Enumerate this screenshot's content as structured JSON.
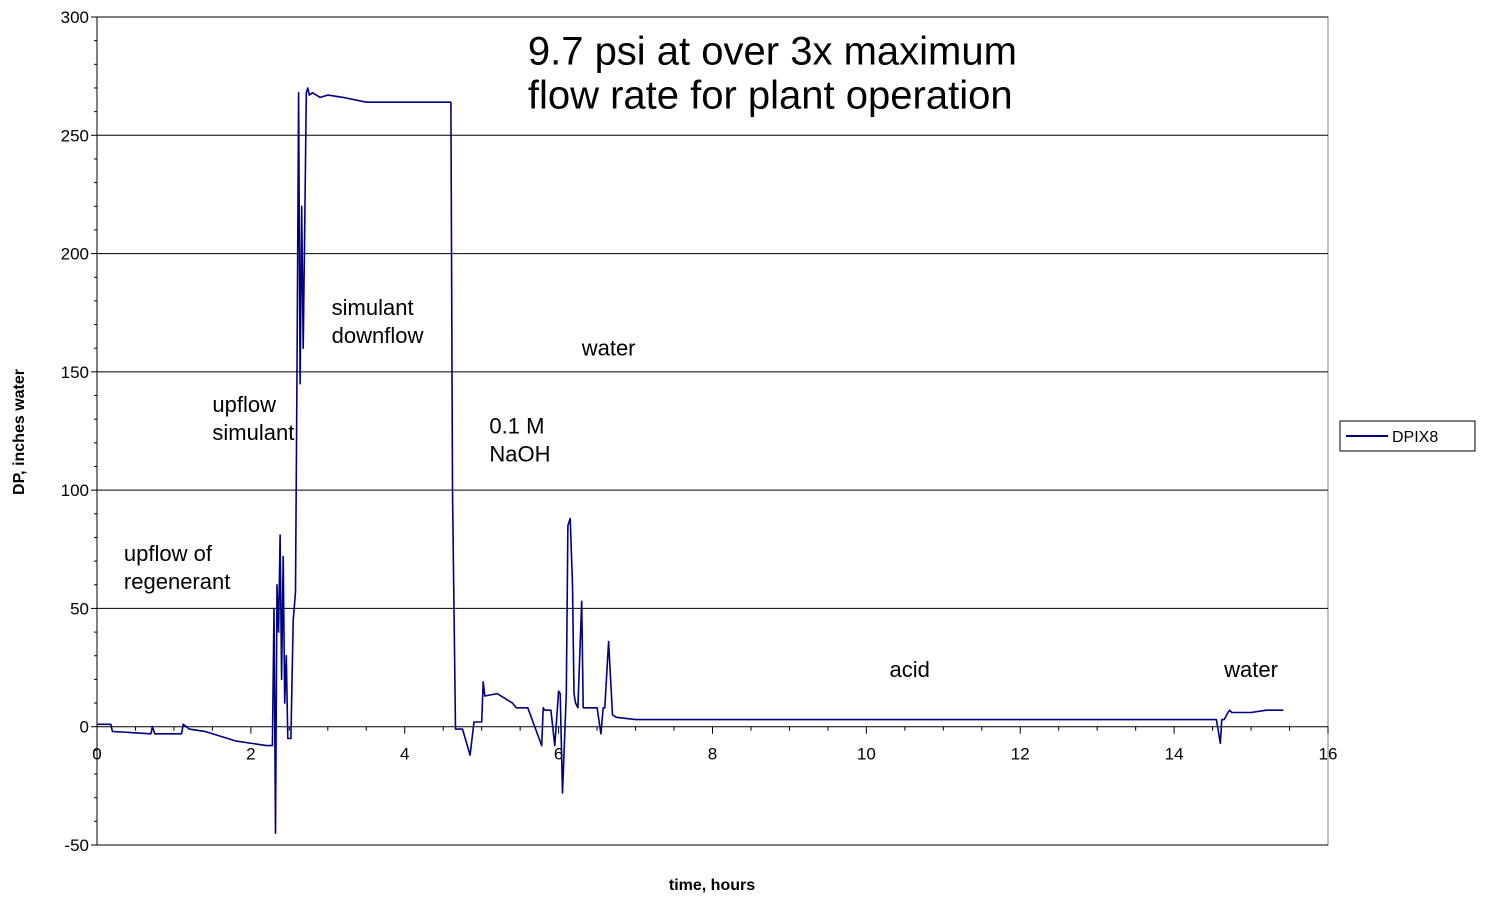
{
  "chart_data": {
    "type": "line",
    "title": "",
    "xlabel": "time, hours",
    "ylabel": "DP, inches water",
    "xlim": [
      0,
      16
    ],
    "ylim": [
      -50,
      300
    ],
    "xticks": [
      "0",
      "2",
      "4",
      "6",
      "8",
      "10",
      "12",
      "14",
      "16"
    ],
    "yticks": [
      "300",
      "250",
      "200",
      "150",
      "100",
      "50",
      "0",
      "-50"
    ],
    "grid": "horizontal",
    "legend_position": "right",
    "colors": {
      "series": "#000080",
      "grid": "#000000",
      "background": "#ffffff"
    },
    "series": [
      {
        "name": "DPIX8",
        "x": [
          0,
          0.18,
          0.2,
          0.7,
          0.72,
          0.75,
          1.1,
          1.12,
          1.2,
          1.4,
          1.8,
          2.2,
          2.28,
          2.3,
          2.32,
          2.34,
          2.36,
          2.38,
          2.4,
          2.42,
          2.44,
          2.46,
          2.48,
          2.52,
          2.55,
          2.58,
          2.6,
          2.62,
          2.64,
          2.66,
          2.68,
          2.7,
          2.72,
          2.74,
          2.76,
          2.8,
          2.9,
          3.0,
          3.2,
          3.5,
          4.0,
          4.5,
          4.6,
          4.62,
          4.66,
          4.7,
          4.75,
          4.85,
          4.9,
          5.0,
          5.02,
          5.04,
          5.2,
          5.4,
          5.45,
          5.6,
          5.78,
          5.8,
          5.82,
          5.9,
          5.95,
          6.0,
          6.02,
          6.05,
          6.1,
          6.12,
          6.15,
          6.18,
          6.2,
          6.22,
          6.25,
          6.3,
          6.32,
          6.35,
          6.5,
          6.55,
          6.58,
          6.6,
          6.65,
          6.7,
          6.75,
          7.0,
          7.5,
          8.0,
          9.0,
          10.0,
          11.0,
          12.0,
          13.0,
          14.0,
          14.5,
          14.55,
          14.6,
          14.62,
          14.65,
          14.7,
          14.72,
          14.75,
          14.8,
          15.0,
          15.2,
          15.3,
          15.4,
          15.42
        ],
        "y": [
          1,
          1,
          -2,
          -3,
          0,
          -3,
          -3,
          1,
          -1,
          -2,
          -6,
          -8,
          -8,
          50,
          -45,
          60,
          40,
          81,
          20,
          72,
          10,
          30,
          -5,
          -5,
          45,
          57,
          150,
          268,
          145,
          220,
          160,
          210,
          268,
          270,
          267,
          268,
          266,
          267,
          266,
          264,
          264,
          264,
          264,
          100,
          -1,
          -1,
          -1,
          -12,
          2,
          2,
          19,
          13,
          14,
          10,
          8,
          8,
          -8,
          8,
          7,
          7,
          -8,
          15,
          14,
          -28,
          14,
          85,
          88,
          60,
          14,
          10,
          8,
          53,
          8,
          8,
          8,
          -3,
          8,
          8,
          36,
          5,
          4,
          3,
          3,
          3,
          3,
          3,
          3,
          3,
          3,
          3,
          3,
          3,
          -7,
          3,
          3,
          6,
          7,
          6,
          6,
          6,
          7,
          7,
          7,
          7
        ]
      }
    ],
    "annotations": [
      {
        "lines": [
          "upflow of",
          "regenerant"
        ],
        "x": 0.35,
        "y": 70,
        "size": "normal"
      },
      {
        "lines": [
          "upflow",
          "simulant"
        ],
        "x": 1.5,
        "y": 133,
        "size": "normal"
      },
      {
        "lines": [
          "simulant",
          "downflow"
        ],
        "x": 3.05,
        "y": 174,
        "size": "normal"
      },
      {
        "lines": [
          "water"
        ],
        "x": 6.3,
        "y": 157,
        "size": "normal"
      },
      {
        "lines": [
          "0.1 M",
          "NaOH"
        ],
        "x": 5.1,
        "y": 124,
        "size": "normal"
      },
      {
        "lines": [
          "acid"
        ],
        "x": 10.3,
        "y": 21,
        "size": "normal"
      },
      {
        "lines": [
          "water"
        ],
        "x": 14.65,
        "y": 21,
        "size": "normal"
      },
      {
        "lines": [
          "9.7 psi at over 3x maximum",
          "flow rate for plant operation"
        ],
        "x": 5.6,
        "y": 280,
        "size": "large"
      }
    ]
  }
}
